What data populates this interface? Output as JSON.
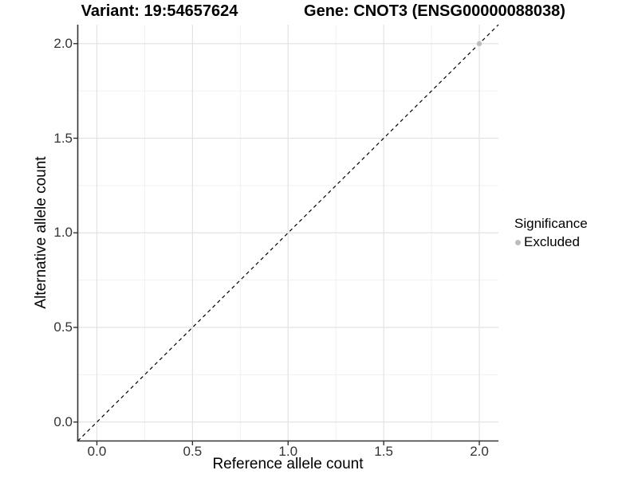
{
  "page": {
    "background": "#ffffff"
  },
  "chart_data": {
    "type": "scatter",
    "titles": {
      "left": "Variant: 19:54657624",
      "right": "Gene: CNOT3 (ENSG00000088038)"
    },
    "xlabel": "Reference allele count",
    "ylabel": "Alternative allele count",
    "xlim": [
      -0.1,
      2.1
    ],
    "ylim": [
      -0.1,
      2.1
    ],
    "xticks": {
      "values": [
        0,
        0.5,
        1,
        1.5,
        2
      ],
      "labels": [
        "0.0",
        "0.5",
        "1.0",
        "1.5",
        "2.0"
      ]
    },
    "yticks": {
      "values": [
        0,
        0.5,
        1,
        1.5,
        2
      ],
      "labels": [
        "0.0",
        "0.5",
        "1.0",
        "1.5",
        "2.0"
      ]
    },
    "minor_ticks": [
      0.25,
      0.75,
      1.25,
      1.75
    ],
    "grid": {
      "shown": true,
      "major_color": "#e2e2e2",
      "minor_color": "#f0f0f0"
    },
    "axis": {
      "line_color": "#333333",
      "tick_color": "#333333",
      "tick_length": 5.5
    },
    "identity_line": {
      "type": "dashed",
      "color": "#000000",
      "from": -0.1,
      "to": 2.1
    },
    "series": [
      {
        "name": "Excluded",
        "color": "#bdbdbd",
        "point_radius": 3.2,
        "points": [
          [
            2,
            2
          ]
        ]
      }
    ],
    "legend": {
      "title": "Significance",
      "position": "right",
      "items": [
        {
          "label": "Excluded",
          "color": "#bdbdbd"
        }
      ]
    }
  }
}
